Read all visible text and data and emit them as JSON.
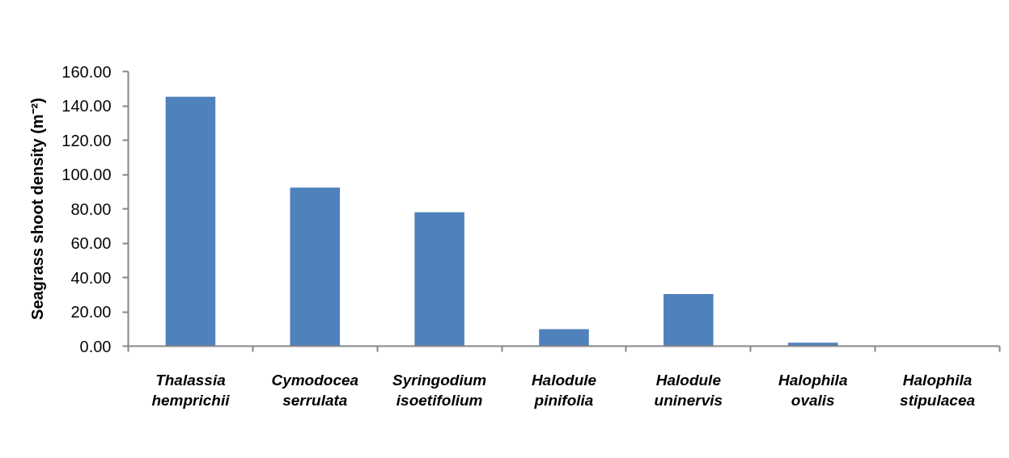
{
  "chart_data": {
    "type": "bar",
    "ylabel": "Seagrass shoot density (m⁻²)",
    "categories": [
      "Thalassia hemprichii",
      "Cymodocea serrulata",
      "Syringodium isoetifolium",
      "Halodule pinifolia",
      "Halodule uninervis",
      "Halophila ovalis",
      "Halophila stipulacea"
    ],
    "values": [
      145.3,
      92.3,
      78.0,
      9.9,
      30.3,
      2.0,
      0.0
    ],
    "color": "#4f81bd",
    "ylim": [
      0,
      160
    ],
    "yticks": [
      {
        "value": 0,
        "label": "0.00"
      },
      {
        "value": 20,
        "label": "20.00"
      },
      {
        "value": 40,
        "label": "40.00"
      },
      {
        "value": 60,
        "label": "60.00"
      },
      {
        "value": 80,
        "label": "80.00"
      },
      {
        "value": 100,
        "label": "100.00"
      },
      {
        "value": 120,
        "label": "120.00"
      },
      {
        "value": 140,
        "label": "140.00"
      },
      {
        "value": 160,
        "label": "160.00"
      }
    ]
  }
}
